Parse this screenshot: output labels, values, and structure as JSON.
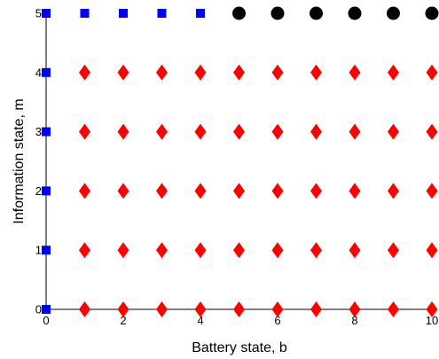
{
  "chart_data": {
    "type": "scatter",
    "xlabel": "Battery state, b",
    "ylabel": "Information state, m",
    "xlim": [
      0,
      10
    ],
    "ylim": [
      0,
      5
    ],
    "xticks": [
      "0",
      "2",
      "4",
      "6",
      "8",
      "10"
    ],
    "yticks": [
      "0",
      "1",
      "2",
      "3",
      "4",
      "5"
    ],
    "grid": false,
    "series": [
      {
        "marker": "square",
        "color": "#0000ff",
        "points": [
          [
            0,
            0
          ],
          [
            0,
            1
          ],
          [
            0,
            2
          ],
          [
            0,
            3
          ],
          [
            0,
            4
          ],
          [
            0,
            5
          ],
          [
            1,
            5
          ],
          [
            2,
            5
          ],
          [
            3,
            5
          ],
          [
            4,
            5
          ]
        ]
      },
      {
        "marker": "diamond",
        "color": "#ff0000",
        "points": [
          [
            1,
            0
          ],
          [
            2,
            0
          ],
          [
            3,
            0
          ],
          [
            4,
            0
          ],
          [
            5,
            0
          ],
          [
            6,
            0
          ],
          [
            7,
            0
          ],
          [
            8,
            0
          ],
          [
            9,
            0
          ],
          [
            10,
            0
          ],
          [
            1,
            1
          ],
          [
            2,
            1
          ],
          [
            3,
            1
          ],
          [
            4,
            1
          ],
          [
            5,
            1
          ],
          [
            6,
            1
          ],
          [
            7,
            1
          ],
          [
            8,
            1
          ],
          [
            9,
            1
          ],
          [
            10,
            1
          ],
          [
            1,
            2
          ],
          [
            2,
            2
          ],
          [
            3,
            2
          ],
          [
            4,
            2
          ],
          [
            5,
            2
          ],
          [
            6,
            2
          ],
          [
            7,
            2
          ],
          [
            8,
            2
          ],
          [
            9,
            2
          ],
          [
            10,
            2
          ],
          [
            1,
            3
          ],
          [
            2,
            3
          ],
          [
            3,
            3
          ],
          [
            4,
            3
          ],
          [
            5,
            3
          ],
          [
            6,
            3
          ],
          [
            7,
            3
          ],
          [
            8,
            3
          ],
          [
            9,
            3
          ],
          [
            10,
            3
          ],
          [
            1,
            4
          ],
          [
            2,
            4
          ],
          [
            3,
            4
          ],
          [
            4,
            4
          ],
          [
            5,
            4
          ],
          [
            6,
            4
          ],
          [
            7,
            4
          ],
          [
            8,
            4
          ],
          [
            9,
            4
          ],
          [
            10,
            4
          ]
        ]
      },
      {
        "marker": "circle",
        "color": "#000000",
        "points": [
          [
            5,
            5
          ],
          [
            6,
            5
          ],
          [
            7,
            5
          ],
          [
            8,
            5
          ],
          [
            9,
            5
          ],
          [
            10,
            5
          ]
        ]
      }
    ]
  }
}
